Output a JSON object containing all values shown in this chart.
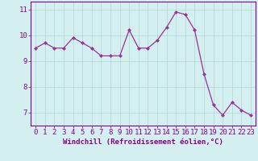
{
  "x": [
    0,
    1,
    2,
    3,
    4,
    5,
    6,
    7,
    8,
    9,
    10,
    11,
    12,
    13,
    14,
    15,
    16,
    17,
    18,
    19,
    20,
    21,
    22,
    23
  ],
  "y": [
    9.5,
    9.7,
    9.5,
    9.5,
    9.9,
    9.7,
    9.5,
    9.2,
    9.2,
    9.2,
    10.2,
    9.5,
    9.5,
    9.8,
    10.3,
    10.9,
    10.8,
    10.2,
    8.5,
    7.3,
    6.9,
    7.4,
    7.1,
    6.9
  ],
  "line_color": "#993399",
  "marker": "D",
  "markersize": 2.0,
  "linewidth": 0.9,
  "xlabel": "Windchill (Refroidissement éolien,°C)",
  "xlim": [
    -0.5,
    23.5
  ],
  "ylim": [
    6.5,
    11.3
  ],
  "yticks": [
    7,
    8,
    9,
    10,
    11
  ],
  "xticks": [
    0,
    1,
    2,
    3,
    4,
    5,
    6,
    7,
    8,
    9,
    10,
    11,
    12,
    13,
    14,
    15,
    16,
    17,
    18,
    19,
    20,
    21,
    22,
    23
  ],
  "bg_color": "#d4efef",
  "grid_color": "#b0d8d8",
  "tick_color": "#880088",
  "label_color": "#880088",
  "font_size": 6.5,
  "xlabel_fontsize": 6.5
}
